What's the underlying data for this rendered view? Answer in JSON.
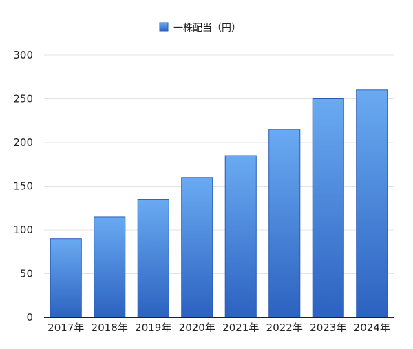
{
  "chart_data": {
    "type": "bar",
    "title": "",
    "xlabel": "",
    "ylabel": "",
    "categories": [
      "2017年",
      "2018年",
      "2019年",
      "2020年",
      "2021年",
      "2022年",
      "2023年",
      "2024年"
    ],
    "series": [
      {
        "name": "一株配当（円）",
        "values": [
          90,
          115,
          135,
          160,
          185,
          215,
          250,
          260
        ]
      }
    ],
    "ylim": [
      0,
      300
    ],
    "yticks": [
      0,
      50,
      100,
      150,
      200,
      250,
      300
    ],
    "grid": true,
    "legend_position": "top-center",
    "colors": {
      "bar_top": "#6aaaf2",
      "bar_bottom": "#2c62c0",
      "bar_stroke": "#2a5cb4",
      "grid": "#e3e3e3",
      "axis": "#222222",
      "text": "#222222"
    }
  }
}
